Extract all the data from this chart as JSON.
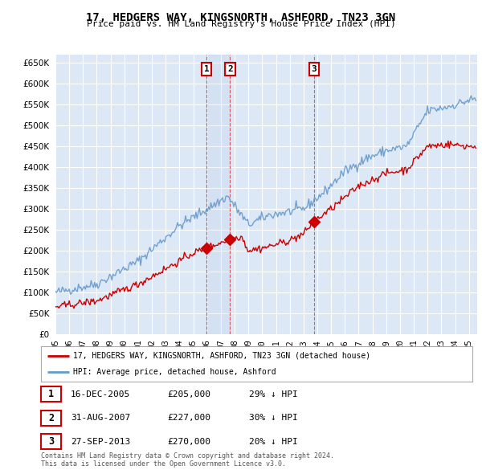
{
  "title": "17, HEDGERS WAY, KINGSNORTH, ASHFORD, TN23 3GN",
  "subtitle": "Price paid vs. HM Land Registry's House Price Index (HPI)",
  "ytick_values": [
    0,
    50000,
    100000,
    150000,
    200000,
    250000,
    300000,
    350000,
    400000,
    450000,
    500000,
    550000,
    600000,
    650000
  ],
  "ylim": [
    0,
    670000
  ],
  "hpi_color": "#6699cc",
  "property_color": "#cc0000",
  "background_color": "#dce8f5",
  "grid_color": "#ffffff",
  "sale_year_floats": [
    2005.96,
    2007.67,
    2013.75
  ],
  "sale_prices": [
    205000,
    227000,
    270000
  ],
  "sale_labels": [
    "1",
    "2",
    "3"
  ],
  "sale_label_dates": [
    "16-DEC-2005",
    "31-AUG-2007",
    "27-SEP-2013"
  ],
  "sale_pct": [
    "29% ↓ HPI",
    "30% ↓ HPI",
    "20% ↓ HPI"
  ],
  "sale_prices_fmt": [
    "£205,000",
    "£227,000",
    "£270,000"
  ],
  "legend_property": "17, HEDGERS WAY, KINGSNORTH, ASHFORD, TN23 3GN (detached house)",
  "legend_hpi": "HPI: Average price, detached house, Ashford",
  "footer1": "Contains HM Land Registry data © Crown copyright and database right 2024.",
  "footer2": "This data is licensed under the Open Government Licence v3.0.",
  "x_start_year": 1995,
  "x_end_year": 2025
}
